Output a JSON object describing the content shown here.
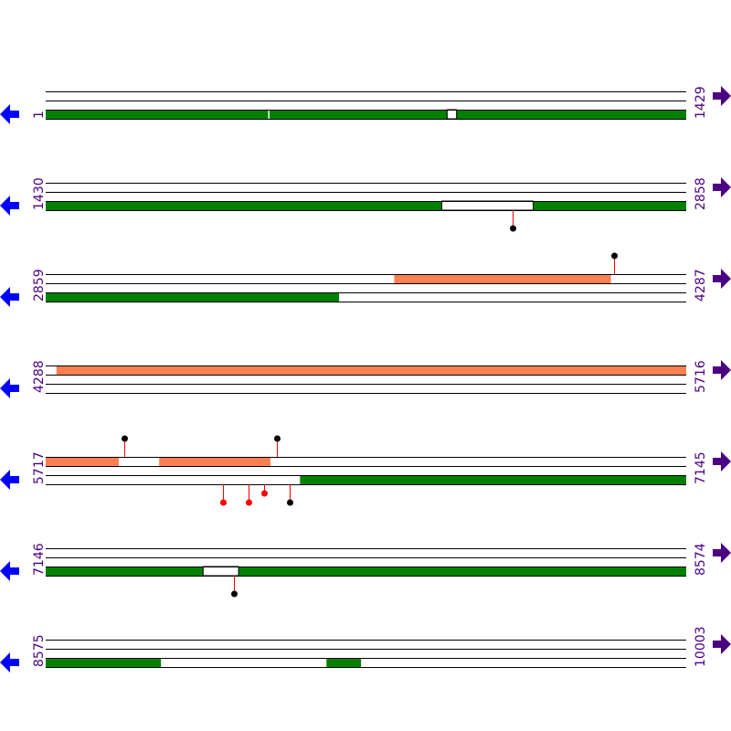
{
  "colors": {
    "cds": "#008000",
    "orange": "#ff7f50",
    "label": "#4b0082",
    "left_arrow": "#0000ff",
    "right_arrow": "#4b0082",
    "stem": "#ff0000",
    "line": "#000000"
  },
  "icons": {
    "left": "arrow-left-icon",
    "right": "arrow-right-icon"
  },
  "rows": [
    {
      "start": "1",
      "end": "1429",
      "s": 1,
      "e": 1429,
      "upper": [],
      "lower": [
        {
          "a": 1,
          "b": 497,
          "c": "cds"
        },
        {
          "a": 500,
          "b": 896,
          "c": "cds"
        },
        {
          "a": 917,
          "b": 1429,
          "c": "cds"
        }
      ],
      "boxes": [
        {
          "a": 896,
          "b": 917,
          "track": "lower"
        }
      ],
      "pins": []
    },
    {
      "start": "1430",
      "end": "2858",
      "s": 1430,
      "e": 2858,
      "upper": [],
      "lower": [
        {
          "a": 1430,
          "b": 2313,
          "c": "cds"
        },
        {
          "a": 2517,
          "b": 2858,
          "c": "cds"
        }
      ],
      "boxes": [
        {
          "a": 2313,
          "b": 2517,
          "track": "lower"
        }
      ],
      "pins": [
        {
          "pos": 2470,
          "side": "below",
          "level": 1,
          "dot": "#000000"
        }
      ]
    },
    {
      "start": "2859",
      "end": "4287",
      "s": 2859,
      "e": 4287,
      "upper": [
        {
          "a": 3636,
          "b": 4119,
          "c": "orange"
        }
      ],
      "lower": [
        {
          "a": 2859,
          "b": 3513,
          "c": "cds"
        }
      ],
      "boxes": [],
      "pins": [
        {
          "pos": 4127,
          "side": "above",
          "level": 1,
          "dot": "#000000"
        }
      ]
    },
    {
      "start": "4288",
      "end": "5716",
      "s": 4288,
      "e": 5716,
      "upper": [
        {
          "a": 4312,
          "b": 5716,
          "c": "orange"
        }
      ],
      "lower": [],
      "boxes": [],
      "pins": []
    },
    {
      "start": "5717",
      "end": "7145",
      "s": 5717,
      "e": 7145,
      "upper": [
        {
          "a": 5717,
          "b": 5880,
          "c": "orange"
        },
        {
          "a": 5970,
          "b": 6218,
          "c": "orange"
        }
      ],
      "lower": [
        {
          "a": 6284,
          "b": 7145,
          "c": "cds"
        }
      ],
      "boxes": [],
      "pins": [
        {
          "pos": 5892,
          "side": "above",
          "level": 1,
          "dot": "#000000"
        },
        {
          "pos": 6233,
          "side": "above",
          "level": 1,
          "dot": "#000000"
        },
        {
          "pos": 6112,
          "side": "below",
          "level": 1,
          "dot": "#ff0000"
        },
        {
          "pos": 6170,
          "side": "below",
          "level": 1,
          "dot": "#ff0000"
        },
        {
          "pos": 6204,
          "side": "below",
          "level": 0,
          "dot": "#ff0000"
        },
        {
          "pos": 6261,
          "side": "below",
          "level": 1,
          "dot": "#000000"
        }
      ]
    },
    {
      "start": "7146",
      "end": "8574",
      "s": 7146,
      "e": 8574,
      "upper": [],
      "lower": [
        {
          "a": 7146,
          "b": 7497,
          "c": "cds"
        },
        {
          "a": 7576,
          "b": 8574,
          "c": "cds"
        }
      ],
      "boxes": [
        {
          "a": 7497,
          "b": 7576,
          "track": "lower"
        }
      ],
      "pins": [
        {
          "pos": 7566,
          "side": "below",
          "level": 1,
          "dot": "#000000"
        }
      ]
    },
    {
      "start": "8575",
      "end": "10003",
      "s": 8575,
      "e": 10003,
      "upper": [],
      "lower": [
        {
          "a": 8575,
          "b": 8832,
          "c": "cds"
        },
        {
          "a": 9201,
          "b": 9278,
          "c": "cds"
        }
      ],
      "boxes": [],
      "pins": []
    }
  ]
}
